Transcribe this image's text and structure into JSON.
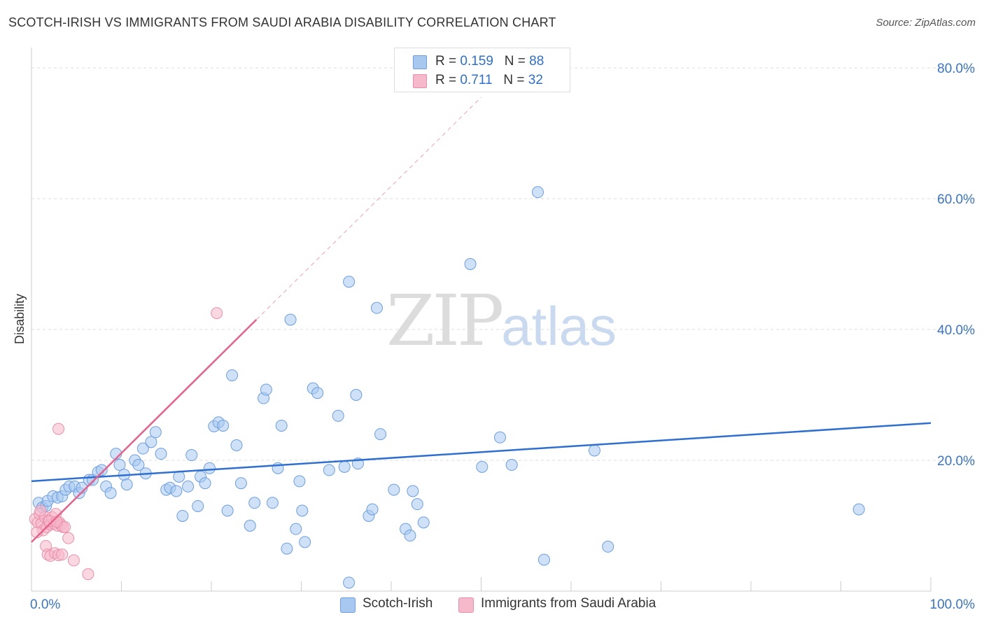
{
  "title": "SCOTCH-IRISH VS IMMIGRANTS FROM SAUDI ARABIA DISABILITY CORRELATION CHART",
  "source": "Source: ZipAtlas.com",
  "watermark": {
    "zip": "ZIP",
    "atlas": "atlas"
  },
  "legend": {
    "rows": [
      {
        "r_label": "R =",
        "r_value": "0.159",
        "n_label": "N =",
        "n_value": "88",
        "color": "#a8c8f0"
      },
      {
        "r_label": "R =",
        "r_value": "0.711",
        "n_label": "N =",
        "n_value": "32",
        "color": "#f6b8cb"
      }
    ]
  },
  "bottom_legend": [
    {
      "label": "Scotch-Irish",
      "color": "#a8c8f0"
    },
    {
      "label": "Immigrants from Saudi Arabia",
      "color": "#f6b8cb"
    }
  ],
  "colors": {
    "blue": "#2f6fd0",
    "blue_fill": "#a8c8f0",
    "pink": "#e8608c",
    "pink_fill": "#f6b8cb",
    "grid": "#dddddd",
    "tick_label": "#3a74c9"
  },
  "chart_data": {
    "type": "scatter",
    "ylabel": "Disability",
    "xlim": [
      0,
      100
    ],
    "ylim": [
      0,
      80
    ],
    "y_ticks": [
      {
        "value": 20,
        "label": "20.0%"
      },
      {
        "value": 40,
        "label": "40.0%"
      },
      {
        "value": 60,
        "label": "60.0%"
      },
      {
        "value": 80,
        "label": "80.0%"
      }
    ],
    "x_ticks": [
      {
        "value": 0,
        "label": "0.0%"
      },
      {
        "value": 100,
        "label": "100.0%"
      }
    ],
    "grid": true,
    "series": [
      {
        "name": "Scotch-Irish",
        "color": "#a8c8f0",
        "points": [
          [
            0.8,
            13.5
          ],
          [
            1.2,
            12.8
          ],
          [
            1.6,
            13.0
          ],
          [
            1.8,
            13.8
          ],
          [
            2.4,
            14.5
          ],
          [
            2.9,
            14.3
          ],
          [
            3.4,
            14.5
          ],
          [
            3.8,
            15.5
          ],
          [
            4.2,
            16.0
          ],
          [
            4.8,
            16.0
          ],
          [
            5.3,
            15.0
          ],
          [
            5.6,
            15.8
          ],
          [
            6.4,
            17.0
          ],
          [
            6.8,
            17.0
          ],
          [
            7.4,
            18.2
          ],
          [
            7.8,
            18.5
          ],
          [
            8.3,
            16.0
          ],
          [
            8.8,
            15.0
          ],
          [
            9.4,
            21.0
          ],
          [
            9.8,
            19.3
          ],
          [
            10.3,
            17.8
          ],
          [
            10.6,
            16.3
          ],
          [
            11.5,
            20.0
          ],
          [
            11.9,
            19.3
          ],
          [
            12.4,
            21.8
          ],
          [
            12.7,
            18.0
          ],
          [
            13.3,
            22.8
          ],
          [
            13.8,
            24.3
          ],
          [
            14.4,
            21.0
          ],
          [
            15.0,
            15.5
          ],
          [
            15.4,
            15.8
          ],
          [
            16.1,
            15.3
          ],
          [
            16.4,
            17.5
          ],
          [
            16.8,
            11.5
          ],
          [
            17.4,
            16.0
          ],
          [
            17.8,
            20.8
          ],
          [
            18.5,
            13.0
          ],
          [
            18.8,
            17.5
          ],
          [
            19.3,
            16.5
          ],
          [
            19.8,
            18.8
          ],
          [
            20.3,
            25.2
          ],
          [
            20.8,
            25.8
          ],
          [
            21.3,
            25.3
          ],
          [
            21.8,
            12.3
          ],
          [
            22.3,
            33.0
          ],
          [
            22.8,
            22.3
          ],
          [
            23.3,
            16.5
          ],
          [
            24.3,
            10.0
          ],
          [
            24.8,
            13.5
          ],
          [
            25.8,
            29.5
          ],
          [
            26.1,
            30.8
          ],
          [
            26.8,
            13.5
          ],
          [
            27.4,
            18.8
          ],
          [
            27.8,
            25.3
          ],
          [
            28.4,
            6.5
          ],
          [
            28.8,
            41.5
          ],
          [
            29.4,
            9.5
          ],
          [
            29.8,
            16.8
          ],
          [
            30.1,
            12.3
          ],
          [
            30.4,
            7.5
          ],
          [
            31.3,
            31.0
          ],
          [
            31.8,
            30.3
          ],
          [
            33.1,
            18.5
          ],
          [
            34.1,
            26.8
          ],
          [
            34.8,
            19.0
          ],
          [
            35.3,
            47.3
          ],
          [
            36.1,
            30.0
          ],
          [
            36.3,
            19.5
          ],
          [
            37.5,
            11.5
          ],
          [
            37.9,
            12.5
          ],
          [
            38.4,
            43.3
          ],
          [
            38.8,
            24.0
          ],
          [
            40.3,
            15.5
          ],
          [
            41.6,
            9.5
          ],
          [
            42.1,
            8.5
          ],
          [
            42.4,
            15.3
          ],
          [
            42.9,
            13.3
          ],
          [
            43.6,
            10.5
          ],
          [
            35.3,
            1.3
          ],
          [
            48.8,
            50.0
          ],
          [
            50.1,
            19.0
          ],
          [
            52.1,
            23.5
          ],
          [
            53.4,
            19.3
          ],
          [
            56.3,
            61.0
          ],
          [
            57.0,
            4.8
          ],
          [
            62.6,
            21.5
          ],
          [
            64.1,
            6.8
          ],
          [
            92.0,
            12.5
          ]
        ],
        "trend": {
          "x": [
            0,
            100
          ],
          "y": [
            16.8,
            25.7
          ]
        }
      },
      {
        "name": "Immigrants from Saudi Arabia",
        "color": "#f6b8cb",
        "points": [
          [
            0.4,
            11.0
          ],
          [
            0.7,
            10.5
          ],
          [
            0.9,
            11.8
          ],
          [
            1.1,
            10.3
          ],
          [
            1.3,
            9.3
          ],
          [
            1.5,
            11.3
          ],
          [
            1.7,
            9.8
          ],
          [
            1.9,
            10.8
          ],
          [
            2.1,
            10.2
          ],
          [
            2.3,
            11.3
          ],
          [
            2.5,
            10.3
          ],
          [
            2.7,
            11.8
          ],
          [
            2.9,
            10.0
          ],
          [
            3.1,
            10.5
          ],
          [
            3.3,
            10.1
          ],
          [
            3.5,
            9.8
          ],
          [
            3.7,
            9.8
          ],
          [
            4.1,
            8.1
          ],
          [
            1.6,
            6.9
          ],
          [
            1.8,
            5.6
          ],
          [
            2.1,
            5.4
          ],
          [
            2.6,
            5.8
          ],
          [
            3.0,
            5.5
          ],
          [
            3.4,
            5.6
          ],
          [
            4.7,
            4.7
          ],
          [
            6.3,
            2.6
          ],
          [
            3.0,
            24.8
          ],
          [
            20.6,
            42.5
          ],
          [
            0.6,
            9.0
          ],
          [
            1.0,
            12.3
          ],
          [
            2.0,
            10.7
          ],
          [
            2.8,
            10.6
          ]
        ],
        "trend": {
          "x": [
            0,
            25
          ],
          "y": [
            7.5,
            41.5
          ]
        },
        "trend_extension": {
          "x": [
            25,
            50
          ],
          "y": [
            41.5,
            75.5
          ]
        }
      }
    ]
  }
}
